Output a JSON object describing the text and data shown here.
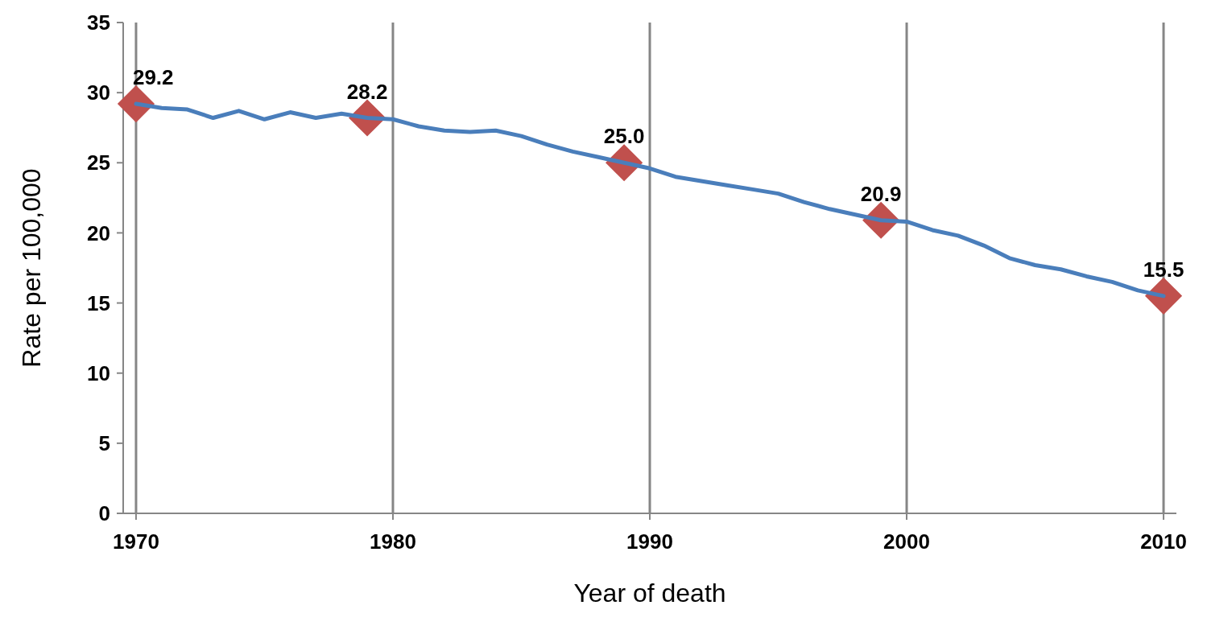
{
  "chart_data": {
    "type": "line",
    "xlabel": "Year of death",
    "ylabel": "Rate per 100,000",
    "xlim": [
      1969.5,
      2010.5
    ],
    "xticks": [
      1970,
      1980,
      1990,
      2000,
      2010
    ],
    "ylim": [
      0,
      35
    ],
    "yticks": [
      0,
      5,
      10,
      15,
      20,
      25,
      30,
      35
    ],
    "grid": "x",
    "series": [
      {
        "color": "#4a7ebb",
        "marker": "none",
        "line_style": "solid",
        "x": [
          1970,
          1971,
          1972,
          1973,
          1974,
          1975,
          1976,
          1977,
          1978,
          1979,
          1980,
          1981,
          1982,
          1983,
          1984,
          1985,
          1986,
          1987,
          1988,
          1989,
          1990,
          1991,
          1992,
          1993,
          1994,
          1995,
          1996,
          1997,
          1998,
          1999,
          2000,
          2001,
          2002,
          2003,
          2004,
          2005,
          2006,
          2007,
          2008,
          2009,
          2010
        ],
        "values": [
          29.2,
          28.9,
          28.8,
          28.2,
          28.7,
          28.1,
          28.6,
          28.2,
          28.5,
          28.2,
          28.1,
          27.6,
          27.3,
          27.2,
          27.3,
          26.9,
          26.3,
          25.8,
          25.4,
          25.0,
          24.6,
          24.0,
          23.7,
          23.4,
          23.1,
          22.8,
          22.2,
          21.7,
          21.3,
          20.9,
          20.8,
          20.2,
          19.8,
          19.1,
          18.2,
          17.7,
          17.4,
          16.9,
          16.5,
          15.9,
          15.5
        ]
      },
      {
        "type": "scatter",
        "color": "#c0504d",
        "marker": "diamond",
        "x": [
          1970,
          1979,
          1989,
          1999,
          2010
        ],
        "values": [
          29.2,
          28.2,
          25.0,
          20.9,
          15.5
        ],
        "value_labels": [
          "29.2",
          "28.2",
          "25.0",
          "20.9",
          "15.5"
        ]
      }
    ]
  }
}
